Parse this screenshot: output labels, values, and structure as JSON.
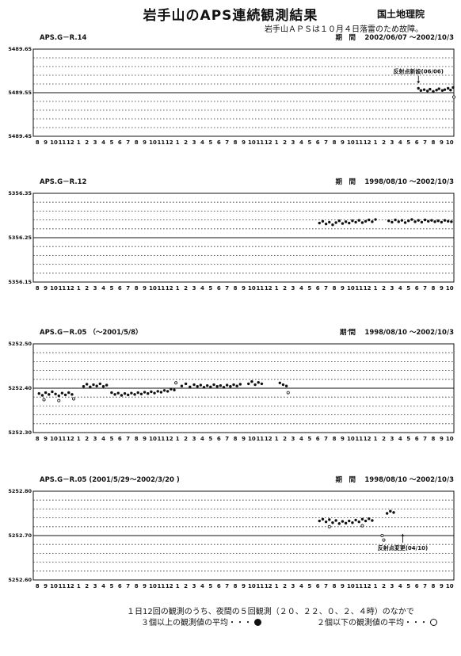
{
  "header": {
    "title": "岩手山のAPS連続観測結果",
    "agency": "国土地理院",
    "notice": "岩手山ＡＰＳは１０月４日落雷のため故障。"
  },
  "legend": {
    "line1": "１日12回の観測のうち、夜間の５回観測（２０、２２、０、２、４時）のなかで",
    "solid_label": "３個以上の観測値の平均・・・",
    "hollow_label": "２個以下の観測値の平均・・・"
  },
  "month_ticks": [
    "8",
    "9",
    "10",
    "11",
    "12",
    "1",
    "2",
    "3",
    "4",
    "5",
    "6",
    "7",
    "8",
    "9",
    "10",
    "11",
    "12",
    "1",
    "2",
    "3",
    "4",
    "5",
    "6",
    "7",
    "8",
    "9",
    "10",
    "11",
    "12",
    "1",
    "2",
    "3",
    "4",
    "5",
    "6",
    "7",
    "8",
    "9",
    "10",
    "11",
    "12",
    "1",
    "2",
    "3",
    "4",
    "5",
    "6",
    "7",
    "8",
    "9",
    "10"
  ],
  "chart_data": [
    {
      "type": "scatter",
      "title": "APS.G－R.14",
      "period": "期　間　 2002/06/07 ～2002/10/3",
      "x_unit": "month index from 1998/08",
      "yticks": [
        "5489.65",
        "5489.55",
        "5489.45"
      ],
      "ylim": [
        5489.45,
        5489.65
      ],
      "reference_line": 5489.55,
      "annotations": [
        {
          "text": "反射点新設(06/06)",
          "x": 46.2,
          "y": 5489.58
        }
      ],
      "series": [
        {
          "marker": "solid",
          "points": [
            [
              46.2,
              5489.56
            ],
            [
              46.5,
              5489.555
            ],
            [
              46.9,
              5489.557
            ],
            [
              47.3,
              5489.554
            ],
            [
              47.6,
              5489.558
            ],
            [
              48.0,
              5489.553
            ],
            [
              48.4,
              5489.556
            ],
            [
              48.7,
              5489.559
            ],
            [
              49.1,
              5489.555
            ],
            [
              49.4,
              5489.557
            ],
            [
              49.8,
              5489.56
            ],
            [
              50.1,
              5489.556
            ],
            [
              50.4,
              5489.562
            ]
          ]
        },
        {
          "marker": "hollow",
          "points": [
            [
              50.5,
              5489.54
            ]
          ]
        }
      ]
    },
    {
      "type": "scatter",
      "title": "APS.G－R.12",
      "period": "期　間　 1998/08/10 ～2002/10/3",
      "x_unit": "month index from 1998/08",
      "yticks": [
        "5356.35",
        "5356.25",
        "5356.15"
      ],
      "ylim": [
        5356.15,
        5356.35
      ],
      "reference_line": 5356.25,
      "annotations": [],
      "series": [
        {
          "marker": "solid",
          "points": [
            [
              34.2,
              5356.283
            ],
            [
              34.6,
              5356.287
            ],
            [
              35.0,
              5356.281
            ],
            [
              35.4,
              5356.285
            ],
            [
              35.8,
              5356.279
            ],
            [
              36.2,
              5356.284
            ],
            [
              36.6,
              5356.288
            ],
            [
              37.0,
              5356.282
            ],
            [
              37.4,
              5356.286
            ],
            [
              37.8,
              5356.283
            ],
            [
              38.2,
              5356.288
            ],
            [
              38.6,
              5356.285
            ],
            [
              39.0,
              5356.289
            ],
            [
              39.4,
              5356.284
            ],
            [
              39.8,
              5356.287
            ],
            [
              40.2,
              5356.29
            ],
            [
              40.6,
              5356.286
            ],
            [
              41.0,
              5356.291
            ],
            [
              42.6,
              5356.288
            ],
            [
              43.0,
              5356.285
            ],
            [
              43.4,
              5356.29
            ],
            [
              43.8,
              5356.286
            ],
            [
              44.2,
              5356.289
            ],
            [
              44.6,
              5356.284
            ],
            [
              45.0,
              5356.288
            ],
            [
              45.4,
              5356.291
            ],
            [
              45.8,
              5356.286
            ],
            [
              46.2,
              5356.289
            ],
            [
              46.6,
              5356.285
            ],
            [
              47.0,
              5356.29
            ],
            [
              47.4,
              5356.287
            ],
            [
              47.8,
              5356.289
            ],
            [
              48.2,
              5356.286
            ],
            [
              48.6,
              5356.288
            ],
            [
              49.0,
              5356.285
            ],
            [
              49.4,
              5356.289
            ],
            [
              49.8,
              5356.287
            ],
            [
              50.2,
              5356.286
            ]
          ]
        }
      ]
    },
    {
      "type": "scatter",
      "title": "APS.G－R.05 （～2001/5/8）",
      "period": "期́ 間　 1998/08/10 ～2002/10/3",
      "x_unit": "month index from 1998/08",
      "yticks": [
        "5252.50",
        "5252.40",
        "5252.30"
      ],
      "ylim": [
        5252.3,
        5252.5
      ],
      "reference_line": 5252.4,
      "annotations": [],
      "series": [
        {
          "marker": "solid",
          "points": [
            [
              0.2,
              5252.388
            ],
            [
              0.6,
              5252.384
            ],
            [
              1.0,
              5252.39
            ],
            [
              1.4,
              5252.386
            ],
            [
              1.8,
              5252.392
            ],
            [
              2.2,
              5252.387
            ],
            [
              2.6,
              5252.383
            ],
            [
              3.0,
              5252.389
            ],
            [
              3.4,
              5252.385
            ],
            [
              3.8,
              5252.39
            ],
            [
              4.2,
              5252.386
            ],
            [
              5.6,
              5252.404
            ],
            [
              6.0,
              5252.409
            ],
            [
              6.4,
              5252.403
            ],
            [
              6.8,
              5252.408
            ],
            [
              7.2,
              5252.405
            ],
            [
              7.6,
              5252.41
            ],
            [
              8.0,
              5252.404
            ],
            [
              8.4,
              5252.407
            ],
            [
              9.0,
              5252.39
            ],
            [
              9.4,
              5252.386
            ],
            [
              9.8,
              5252.389
            ],
            [
              10.2,
              5252.384
            ],
            [
              10.6,
              5252.388
            ],
            [
              11.0,
              5252.385
            ],
            [
              11.4,
              5252.389
            ],
            [
              11.8,
              5252.386
            ],
            [
              12.2,
              5252.39
            ],
            [
              12.6,
              5252.387
            ],
            [
              13.0,
              5252.391
            ],
            [
              13.4,
              5252.388
            ],
            [
              13.8,
              5252.392
            ],
            [
              14.2,
              5252.389
            ],
            [
              14.6,
              5252.393
            ],
            [
              15.0,
              5252.391
            ],
            [
              15.4,
              5252.395
            ],
            [
              15.8,
              5252.393
            ],
            [
              16.2,
              5252.398
            ],
            [
              16.6,
              5252.396
            ],
            [
              17.5,
              5252.405
            ],
            [
              18.0,
              5252.41
            ],
            [
              18.5,
              5252.403
            ],
            [
              19.0,
              5252.408
            ],
            [
              19.4,
              5252.404
            ],
            [
              19.8,
              5252.407
            ],
            [
              20.2,
              5252.402
            ],
            [
              20.6,
              5252.406
            ],
            [
              21.0,
              5252.403
            ],
            [
              21.4,
              5252.408
            ],
            [
              21.8,
              5252.404
            ],
            [
              22.2,
              5252.406
            ],
            [
              22.6,
              5252.402
            ],
            [
              23.0,
              5252.407
            ],
            [
              23.4,
              5252.404
            ],
            [
              23.8,
              5252.408
            ],
            [
              24.2,
              5252.405
            ],
            [
              24.6,
              5252.409
            ],
            [
              25.6,
              5252.41
            ],
            [
              26.0,
              5252.415
            ],
            [
              26.4,
              5252.408
            ],
            [
              26.8,
              5252.413
            ],
            [
              27.2,
              5252.41
            ],
            [
              29.4,
              5252.412
            ],
            [
              29.8,
              5252.408
            ],
            [
              30.2,
              5252.405
            ]
          ]
        },
        {
          "marker": "hollow",
          "points": [
            [
              0.8,
              5252.374
            ],
            [
              2.6,
              5252.372
            ],
            [
              4.4,
              5252.376
            ],
            [
              16.8,
              5252.412
            ],
            [
              30.4,
              5252.39
            ]
          ]
        }
      ]
    },
    {
      "type": "scatter",
      "title": "APS.G－R.05 (2001/5/29～2002/3/20 )",
      "period": "期　間　 1998/08/10 ～2002/10/3",
      "x_unit": "month index from 1998/08",
      "yticks": [
        "5252.80",
        "5252.70",
        "5252.60"
      ],
      "ylim": [
        5252.6,
        5252.8
      ],
      "reference_line": 5252.7,
      "annotations": [
        {
          "text": "反射点変更(04/10)",
          "x": 44.3,
          "y": 5252.693
        }
      ],
      "series": [
        {
          "marker": "solid",
          "points": [
            [
              34.2,
              5252.733
            ],
            [
              34.6,
              5252.737
            ],
            [
              35.0,
              5252.731
            ],
            [
              35.4,
              5252.736
            ],
            [
              35.8,
              5252.729
            ],
            [
              36.2,
              5252.734
            ],
            [
              36.6,
              5252.727
            ],
            [
              37.0,
              5252.732
            ],
            [
              37.4,
              5252.728
            ],
            [
              37.8,
              5252.733
            ],
            [
              38.2,
              5252.729
            ],
            [
              38.6,
              5252.735
            ],
            [
              39.0,
              5252.731
            ],
            [
              39.4,
              5252.737
            ],
            [
              39.8,
              5252.733
            ],
            [
              40.2,
              5252.738
            ],
            [
              40.6,
              5252.734
            ],
            [
              42.4,
              5252.75
            ],
            [
              42.8,
              5252.755
            ],
            [
              43.2,
              5252.752
            ]
          ]
        },
        {
          "marker": "hollow",
          "points": [
            [
              35.4,
              5252.72
            ],
            [
              39.4,
              5252.722
            ],
            [
              41.8,
              5252.7
            ],
            [
              42.0,
              5252.69
            ]
          ]
        }
      ]
    }
  ]
}
